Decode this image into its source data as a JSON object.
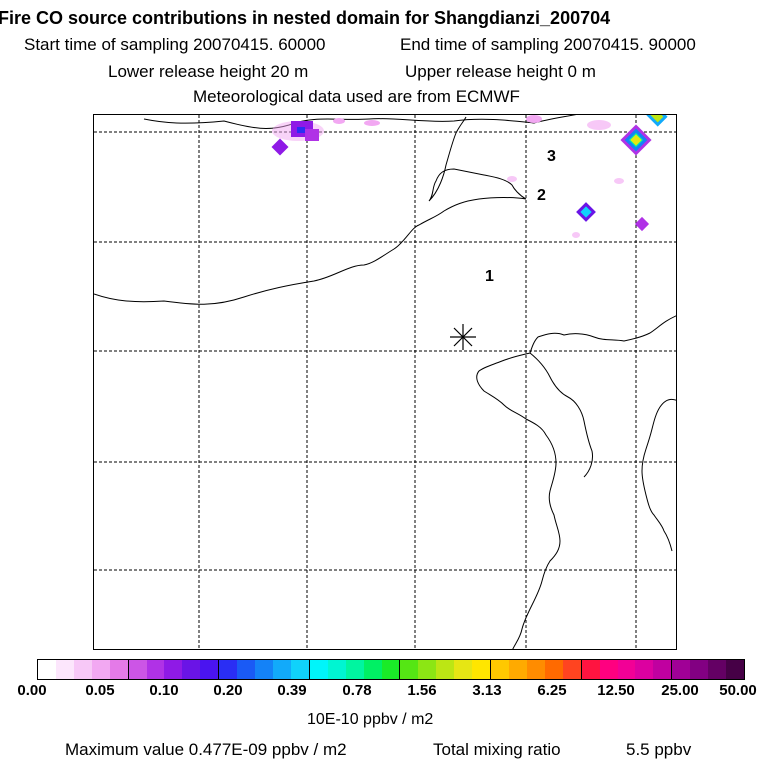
{
  "header": {
    "title": "Fire CO source contributions in nested domain for Shangdianzi_200704",
    "start_label": "Start time of sampling 20070415. 60000",
    "end_label": "End time of sampling 20070415. 90000",
    "lower_label": "Lower release height   20 m",
    "upper_label": "Upper release height    0 m",
    "met_label": "Meteorological data used are from ECMWF"
  },
  "map": {
    "markers": [
      {
        "label": "1"
      },
      {
        "label": "2"
      },
      {
        "label": "3"
      }
    ],
    "release_site_icon": "asterisk-icon"
  },
  "colorbar": {
    "ticks": [
      "0.00",
      "0.05",
      "0.10",
      "0.20",
      "0.39",
      "0.78",
      "1.56",
      "3.13",
      "6.25",
      "12.50",
      "25.00",
      "50.00"
    ],
    "unit": "10E-10 ppbv / m2",
    "colors": [
      "#ffffff",
      "#fce6fc",
      "#f7c8f7",
      "#f2a8f2",
      "#e47ae8",
      "#cc55e6",
      "#b032e6",
      "#8f1ae6",
      "#6a14e6",
      "#4a14f0",
      "#2a2ef4",
      "#1a5af5",
      "#1482f7",
      "#12aafa",
      "#10d2fb",
      "#00f5fa",
      "#00f5d2",
      "#00f5a0",
      "#00f064",
      "#1aeb28",
      "#55e614",
      "#8ce614",
      "#bce614",
      "#e6e614",
      "#ffe600",
      "#ffc800",
      "#ffaa00",
      "#ff8c00",
      "#ff6a00",
      "#ff4420",
      "#ff1440",
      "#ff0080",
      "#f20096",
      "#dc00a0",
      "#c000a0",
      "#a00096",
      "#820082",
      "#640064",
      "#460046"
    ]
  },
  "footer": {
    "max_label": "Maximum value  0.477E-09 ppbv / m2",
    "total_label": "Total mixing ratio",
    "total_value": "5.5 ppbv"
  }
}
